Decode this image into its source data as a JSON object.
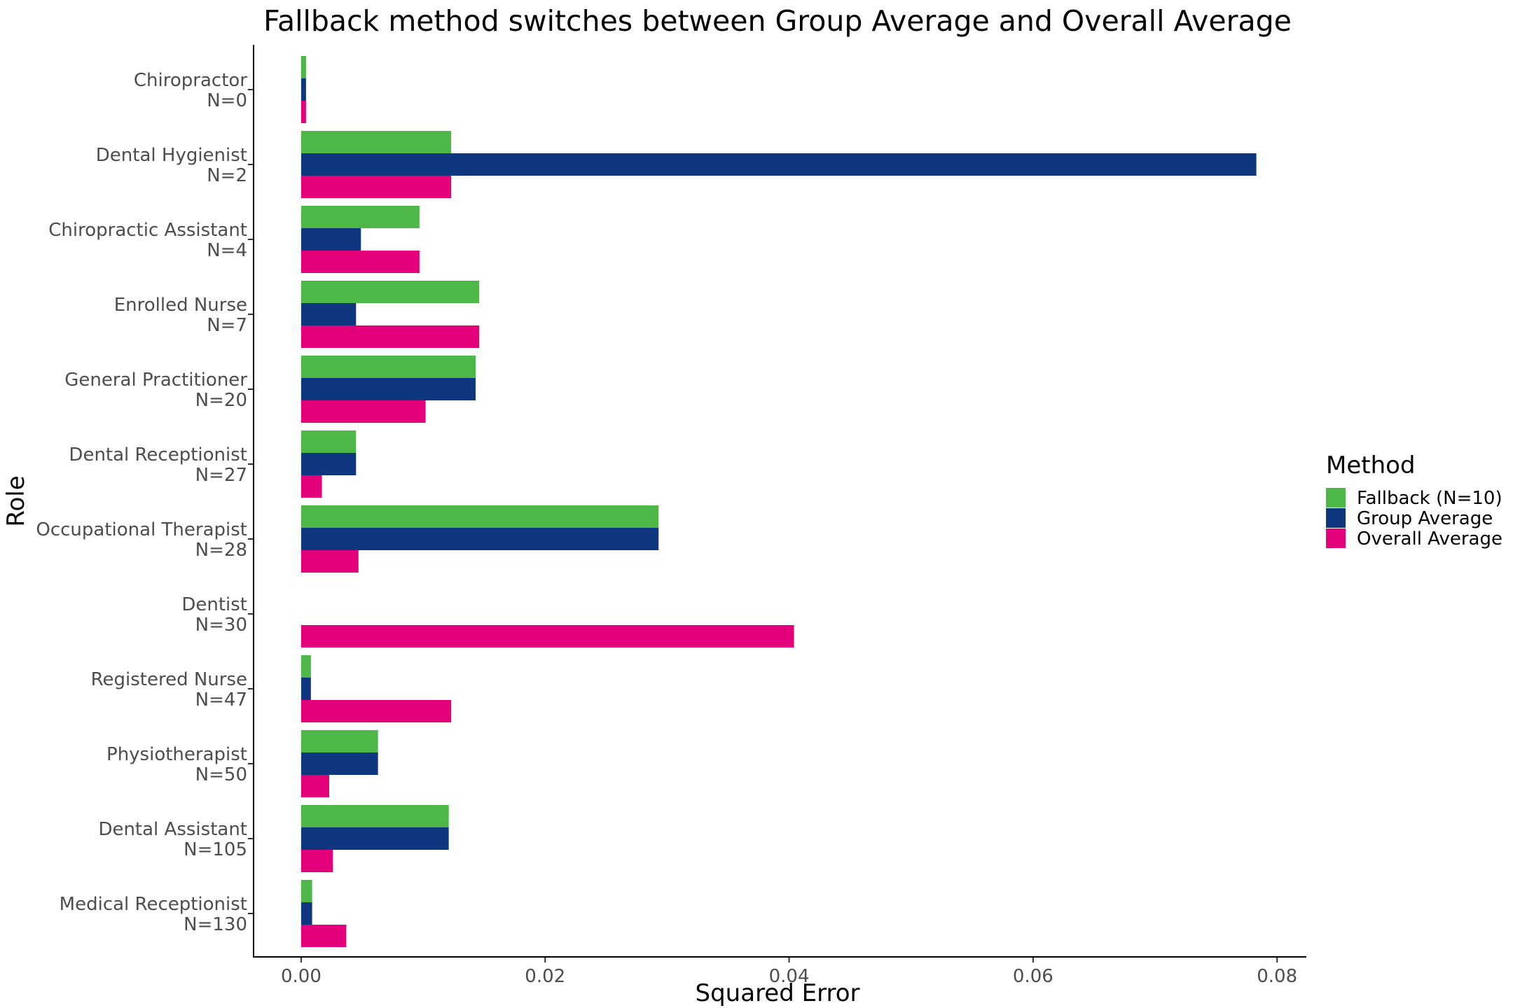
{
  "chart_data": {
    "type": "bar",
    "orientation": "horizontal",
    "title": "Fallback method switches between Group Average and Overall Average",
    "xlabel": "Squared Error",
    "ylabel": "Role",
    "xlim": [
      -0.0039,
      0.0824
    ],
    "xticks": [
      0.0,
      0.02,
      0.04,
      0.06,
      0.08
    ],
    "xtick_labels": [
      "0.00",
      "0.02",
      "0.04",
      "0.06",
      "0.08"
    ],
    "grid": false,
    "legend": {
      "title": "Method",
      "position": "right",
      "entries": [
        "Fallback (N=10)",
        "Group Average",
        "Overall Average"
      ]
    },
    "categories": [
      [
        "Chiropractor",
        "N=0"
      ],
      [
        "Dental Hygienist",
        "N=2"
      ],
      [
        "Chiropractic Assistant",
        "N=4"
      ],
      [
        "Enrolled Nurse",
        "N=7"
      ],
      [
        "General Practitioner",
        "N=20"
      ],
      [
        "Dental Receptionist",
        "N=27"
      ],
      [
        "Occupational Therapist",
        "N=28"
      ],
      [
        "Dentist",
        "N=30"
      ],
      [
        "Registered Nurse",
        "N=47"
      ],
      [
        "Physiotherapist",
        "N=50"
      ],
      [
        "Dental Assistant",
        "N=105"
      ],
      [
        "Medical Receptionist",
        "N=130"
      ]
    ],
    "series": [
      {
        "name": "Fallback (N=10)",
        "color": "#4db748",
        "values": [
          0.0004,
          0.0123,
          0.0097,
          0.0146,
          0.0143,
          0.0045,
          0.0293,
          0.0,
          0.0008,
          0.0063,
          0.0121,
          0.0009
        ]
      },
      {
        "name": "Group Average",
        "color": "#0e3780",
        "values": [
          0.0004,
          0.0783,
          0.0049,
          0.0045,
          0.0143,
          0.0045,
          0.0293,
          0.0,
          0.0008,
          0.0063,
          0.0121,
          0.0009
        ]
      },
      {
        "name": "Overall Average",
        "color": "#e5007b",
        "values": [
          0.0004,
          0.0123,
          0.0097,
          0.0146,
          0.0102,
          0.0017,
          0.0047,
          0.0404,
          0.0123,
          0.0023,
          0.0026,
          0.0037
        ]
      }
    ]
  }
}
